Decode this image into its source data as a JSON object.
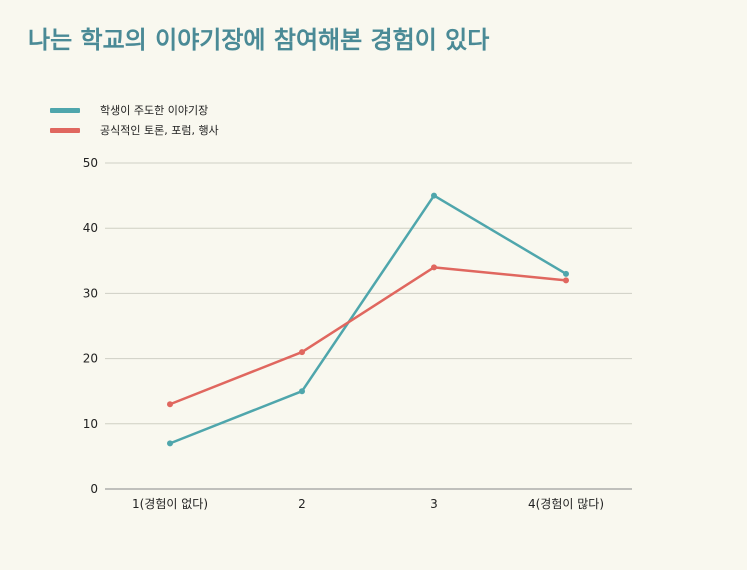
{
  "chart_data": {
    "type": "line",
    "title": "나는 학교의 이야기장에 참여해본 경험이 있다",
    "categories": [
      "1(경험이 없다)",
      "2",
      "3",
      "4(경험이 많다)"
    ],
    "series": [
      {
        "name": "학생이 주도한 이야기장",
        "color": "#4fa6ac",
        "values": [
          7,
          15,
          45,
          33
        ]
      },
      {
        "name": "공식적인 토론, 포럼, 행사",
        "color": "#e0675f",
        "values": [
          13,
          21,
          34,
          32
        ]
      }
    ],
    "yticks": [
      0,
      10,
      20,
      30,
      40,
      50
    ],
    "ylim": [
      0,
      50
    ],
    "xlabel": "",
    "ylabel": "",
    "grid": true,
    "legend_position": "top-left"
  }
}
